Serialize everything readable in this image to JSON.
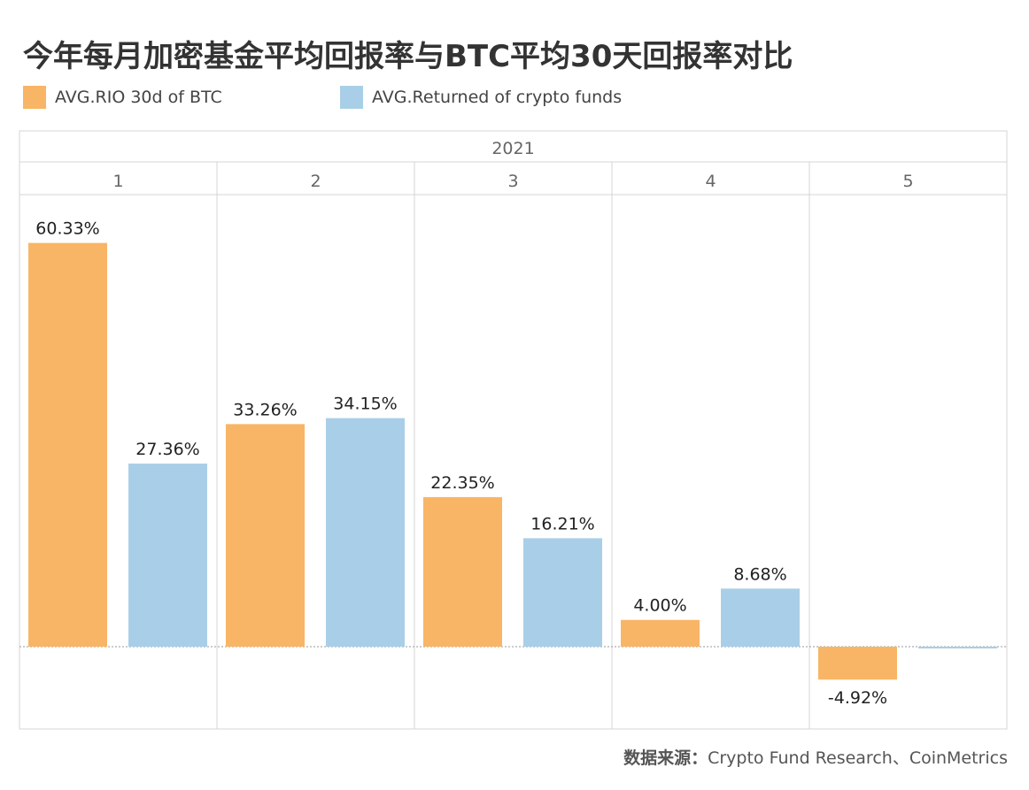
{
  "title": "今年每月加密基金平均回报率与BTC平均30天回报率对比",
  "legend": [
    {
      "label": "AVG.RIO 30d of BTC",
      "color": "#F8B566",
      "icon": "square-swatch"
    },
    {
      "label": "AVG.Returned of crypto funds",
      "color": "#A9CFE8",
      "icon": "square-swatch"
    }
  ],
  "source": {
    "prefix": "数据来源：",
    "text": "Crypto Fund Research、CoinMetrics"
  },
  "chart_data": {
    "type": "bar",
    "year_label": "2021",
    "categories": [
      "1",
      "2",
      "3",
      "4",
      "5"
    ],
    "series": [
      {
        "name": "AVG.RIO 30d of BTC",
        "color": "#F8B566",
        "values": [
          60.33,
          33.26,
          22.35,
          4.0,
          -4.92
        ],
        "labels": [
          "60.33%",
          "33.26%",
          "22.35%",
          "4.00%",
          "-4.92%"
        ]
      },
      {
        "name": "AVG.Returned of crypto funds",
        "color": "#A9CFE8",
        "values": [
          27.36,
          34.15,
          16.21,
          8.68,
          -0.2
        ],
        "labels": [
          "27.36%",
          "34.15%",
          "16.21%",
          "8.68%",
          ""
        ]
      }
    ],
    "ylim": [
      -12.3,
      65
    ],
    "grid": "vertical-separators",
    "legend_position": "top-left"
  }
}
